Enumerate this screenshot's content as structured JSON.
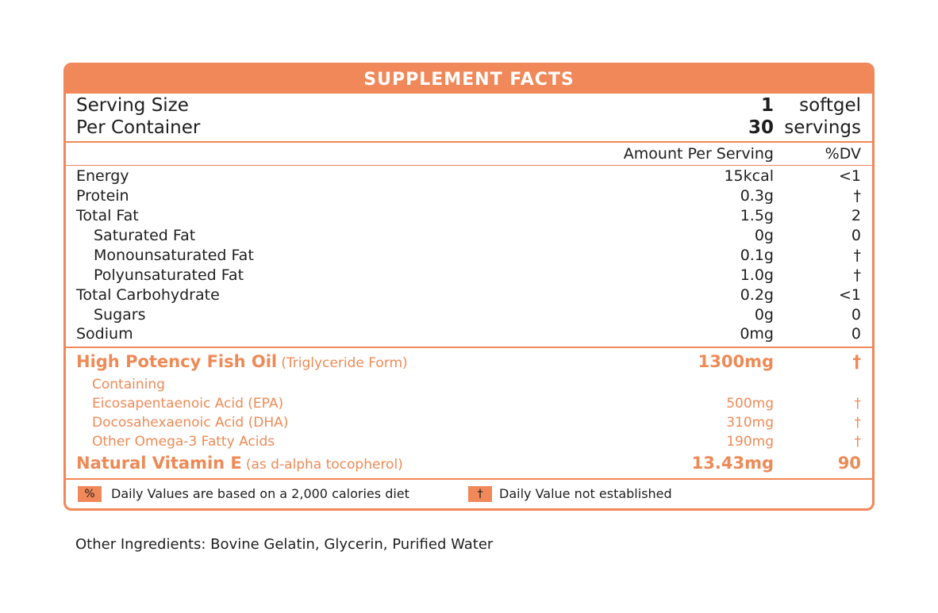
{
  "title": "SUPPLEMENT FACTS",
  "serving": {
    "size_label": "Serving Size",
    "size_qty": "1",
    "size_unit": "softgel",
    "container_label": "Per Container",
    "container_qty": "30",
    "container_unit": "servings"
  },
  "columns": {
    "amount": "Amount Per Serving",
    "dv": "%DV"
  },
  "nutrients": [
    {
      "name": "Energy",
      "amount": "15kcal",
      "dv": "<1",
      "indent": false
    },
    {
      "name": "Protein",
      "amount": "0.3g",
      "dv": "†",
      "indent": false
    },
    {
      "name": "Total Fat",
      "amount": "1.5g",
      "dv": "2",
      "indent": false
    },
    {
      "name": "Saturated Fat",
      "amount": "0g",
      "dv": "0",
      "indent": true
    },
    {
      "name": "Monounsaturated Fat",
      "amount": "0.1g",
      "dv": "†",
      "indent": true
    },
    {
      "name": "Polyunsaturated Fat",
      "amount": "1.0g",
      "dv": "†",
      "indent": true
    },
    {
      "name": "Total Carbohydrate",
      "amount": "0.2g",
      "dv": "<1",
      "indent": false
    },
    {
      "name": "Sugars",
      "amount": "0g",
      "dv": "0",
      "indent": true
    },
    {
      "name": "Sodium",
      "amount": "0mg",
      "dv": "0",
      "indent": false
    }
  ],
  "fish_oil": {
    "name": "High Potency Fish Oil",
    "form": "(Triglyceride Form)",
    "amount": "1300mg",
    "dv": "†",
    "containing_label": "Containing",
    "components": [
      {
        "name": "Eicosapentaenoic Acid (EPA)",
        "amount": "500mg",
        "dv": "†"
      },
      {
        "name": "Docosahexaenoic Acid (DHA)",
        "amount": "310mg",
        "dv": "†"
      },
      {
        "name": "Other Omega-3 Fatty Acids",
        "amount": "190mg",
        "dv": "†"
      }
    ]
  },
  "vitamin_e": {
    "name": "Natural Vitamin E",
    "form": "(as d-alpha tocopherol)",
    "amount": "13.43mg",
    "dv": "90"
  },
  "footnotes": [
    {
      "symbol": "%",
      "text": "Daily Values are based on a 2,000 calories diet"
    },
    {
      "symbol": "†",
      "text": "Daily Value not established"
    }
  ],
  "other_ingredients": "Other Ingredients: Bovine Gelatin, Glycerin, Purified Water",
  "colors": {
    "accent": "#f0885a",
    "text": "#1e1e1e",
    "accent_text": "#ee8a56"
  }
}
